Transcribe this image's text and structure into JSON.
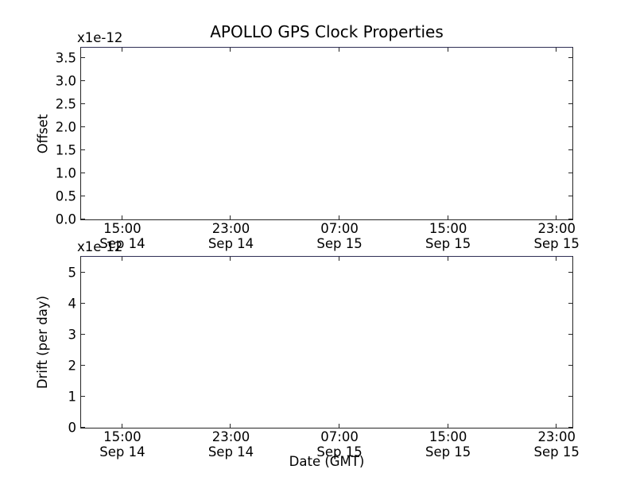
{
  "chart_data": [
    {
      "type": "line",
      "subplot": "offset",
      "title": "APOLLO GPS Clock Properties",
      "ylabel": "Offset",
      "y_offset_text": "x1e-12",
      "xlabel": "",
      "ylim": [
        0,
        3.72
      ],
      "grid": false,
      "legend": "none",
      "yticks": [
        {
          "value": 0.0,
          "label": "0.0"
        },
        {
          "value": 0.5,
          "label": "0.5"
        },
        {
          "value": 1.0,
          "label": "1.0"
        },
        {
          "value": 1.5,
          "label": "1.5"
        },
        {
          "value": 2.0,
          "label": "2.0"
        },
        {
          "value": 2.5,
          "label": "2.5"
        },
        {
          "value": 3.0,
          "label": "3.0"
        },
        {
          "value": 3.5,
          "label": "3.5"
        }
      ],
      "x_ticks": [
        {
          "frac": 0.084,
          "time": "15:00",
          "date": "Sep 14"
        },
        {
          "frac": 0.305,
          "time": "23:00",
          "date": "Sep 14"
        },
        {
          "frac": 0.526,
          "time": "07:00",
          "date": "Sep 15"
        },
        {
          "frac": 0.747,
          "time": "15:00",
          "date": "Sep 15"
        },
        {
          "frac": 0.968,
          "time": "23:00",
          "date": "Sep 15"
        }
      ],
      "series": []
    },
    {
      "type": "line",
      "subplot": "drift",
      "title": "",
      "ylabel": "Drift (per day)",
      "y_offset_text": "x1e-12",
      "xlabel": "Date (GMT)",
      "ylim": [
        0,
        5.51
      ],
      "grid": false,
      "legend": "none",
      "yticks": [
        {
          "value": 0,
          "label": "0"
        },
        {
          "value": 1,
          "label": "1"
        },
        {
          "value": 2,
          "label": "2"
        },
        {
          "value": 3,
          "label": "3"
        },
        {
          "value": 4,
          "label": "4"
        },
        {
          "value": 5,
          "label": "5"
        }
      ],
      "x_ticks": [
        {
          "frac": 0.084,
          "time": "15:00",
          "date": "Sep 14"
        },
        {
          "frac": 0.305,
          "time": "23:00",
          "date": "Sep 14"
        },
        {
          "frac": 0.526,
          "time": "07:00",
          "date": "Sep 15"
        },
        {
          "frac": 0.747,
          "time": "15:00",
          "date": "Sep 15"
        },
        {
          "frac": 0.968,
          "time": "23:00",
          "date": "Sep 15"
        }
      ],
      "series": []
    }
  ],
  "colors": {
    "background": "#ffffff",
    "spine": "#262626",
    "top_spine_tint": "#2e2e55",
    "text": "#000000"
  }
}
